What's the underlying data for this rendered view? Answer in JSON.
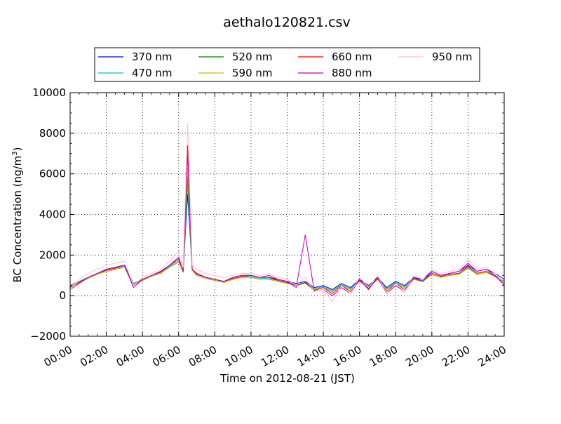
{
  "chart_data": {
    "type": "line",
    "title": "aethalo120821.csv",
    "xlabel": "Time on 2012-08-21 (JST)",
    "ylabel": "BC Concentration (ng/m³)",
    "ylabel_main": "BC Concentration (ng/m",
    "ylabel_sup": "3",
    "ylabel_end": ")",
    "xlim": [
      0,
      24
    ],
    "ylim": [
      -2000,
      10000
    ],
    "x_ticks": [
      0,
      2,
      4,
      6,
      8,
      10,
      12,
      14,
      16,
      18,
      20,
      22,
      24
    ],
    "x_tick_labels": [
      "00:00",
      "02:00",
      "04:00",
      "06:00",
      "08:00",
      "10:00",
      "12:00",
      "14:00",
      "16:00",
      "18:00",
      "20:00",
      "22:00",
      "24:00"
    ],
    "y_ticks": [
      -2000,
      0,
      2000,
      4000,
      6000,
      8000,
      10000
    ],
    "y_tick_labels": [
      "−2000",
      "0",
      "2000",
      "4000",
      "6000",
      "8000",
      "10000"
    ],
    "grid": true,
    "legend_position": "top",
    "x_unit": "hour of day",
    "x": [
      0,
      0.5,
      1,
      1.5,
      2,
      2.5,
      3,
      3.5,
      4,
      4.5,
      5,
      5.5,
      6,
      6.25,
      6.5,
      6.75,
      7,
      7.5,
      8,
      8.5,
      9,
      9.5,
      10,
      10.5,
      11,
      11.5,
      12,
      12.5,
      13,
      13.5,
      14,
      14.5,
      15,
      15.5,
      16,
      16.5,
      17,
      17.5,
      18,
      18.5,
      19,
      19.5,
      20,
      20.5,
      21,
      21.5,
      22,
      22.5,
      23,
      23.5,
      24
    ],
    "series": [
      {
        "name": "370 nm",
        "color": "#0000ff",
        "values": [
          500,
          700,
          900,
          1100,
          1300,
          1400,
          1500,
          600,
          800,
          1000,
          1200,
          1500,
          1800,
          1200,
          5000,
          1300,
          1100,
          900,
          800,
          700,
          900,
          1000,
          1000,
          900,
          900,
          800,
          700,
          600,
          700,
          400,
          500,
          300,
          600,
          400,
          800,
          500,
          900,
          400,
          700,
          500,
          900,
          800,
          1200,
          1000,
          1100,
          1200,
          1500,
          1200,
          1300,
          1100,
          800
        ]
      },
      {
        "name": "470 nm",
        "color": "#00bfbf",
        "values": [
          500,
          700,
          900,
          1100,
          1250,
          1350,
          1450,
          600,
          800,
          1000,
          1150,
          1450,
          1700,
          1200,
          5500,
          1300,
          1050,
          900,
          800,
          700,
          850,
          950,
          950,
          850,
          850,
          750,
          650,
          550,
          650,
          350,
          450,
          250,
          550,
          350,
          750,
          450,
          850,
          350,
          650,
          450,
          850,
          750,
          1100,
          950,
          1050,
          1100,
          1400,
          1100,
          1200,
          1000,
          700
        ]
      },
      {
        "name": "520 nm",
        "color": "#008000",
        "values": [
          450,
          650,
          850,
          1050,
          1200,
          1300,
          1400,
          550,
          750,
          950,
          1100,
          1400,
          1650,
          1150,
          6000,
          1250,
          1000,
          850,
          750,
          650,
          800,
          900,
          900,
          800,
          800,
          700,
          600,
          500,
          600,
          300,
          400,
          200,
          500,
          300,
          700,
          400,
          800,
          300,
          600,
          400,
          800,
          700,
          1050,
          900,
          1000,
          1050,
          1350,
          1050,
          1150,
          950,
          650
        ]
      },
      {
        "name": "590 nm",
        "color": "#bfbf00",
        "values": [
          450,
          650,
          850,
          1050,
          1200,
          1300,
          1400,
          550,
          750,
          950,
          1100,
          1400,
          1650,
          1150,
          6300,
          1250,
          1000,
          850,
          750,
          650,
          800,
          900,
          900,
          800,
          800,
          700,
          600,
          500,
          600,
          300,
          400,
          200,
          500,
          300,
          700,
          400,
          800,
          300,
          600,
          400,
          800,
          700,
          1050,
          900,
          1000,
          1050,
          1350,
          1050,
          1150,
          950,
          650
        ]
      },
      {
        "name": "660 nm",
        "color": "#ff0000",
        "values": [
          400,
          650,
          900,
          1100,
          1250,
          1350,
          1500,
          500,
          800,
          1000,
          1150,
          1500,
          1800,
          1200,
          7400,
          1300,
          1050,
          900,
          800,
          700,
          850,
          950,
          1000,
          900,
          900,
          750,
          650,
          500,
          650,
          250,
          400,
          100,
          500,
          200,
          750,
          350,
          850,
          200,
          600,
          300,
          850,
          700,
          1100,
          950,
          1050,
          1100,
          1450,
          1100,
          1200,
          950,
          600
        ]
      },
      {
        "name": "880 nm",
        "color": "#bf00bf",
        "values": [
          300,
          600,
          900,
          1100,
          1300,
          1400,
          1500,
          400,
          800,
          1000,
          1200,
          1500,
          1900,
          1200,
          7000,
          1300,
          1100,
          900,
          800,
          700,
          900,
          1000,
          1000,
          900,
          1000,
          800,
          700,
          400,
          3000,
          200,
          300,
          0,
          400,
          100,
          800,
          300,
          900,
          100,
          500,
          200,
          900,
          700,
          1200,
          1000,
          1100,
          1200,
          1600,
          1200,
          1300,
          1000,
          500
        ]
      },
      {
        "name": "950 nm",
        "color": "#ffc0cb",
        "values": [
          300,
          800,
          1100,
          1300,
          1500,
          1600,
          1700,
          500,
          900,
          1100,
          1300,
          1700,
          2200,
          1400,
          8500,
          1500,
          1300,
          1100,
          1000,
          900,
          1000,
          1100,
          1100,
          1000,
          1100,
          900,
          800,
          500,
          900,
          200,
          300,
          -300,
          500,
          100,
          900,
          400,
          1000,
          100,
          600,
          200,
          1000,
          800,
          1300,
          1100,
          1200,
          1300,
          1800,
          1300,
          1400,
          1100,
          600
        ]
      }
    ]
  }
}
